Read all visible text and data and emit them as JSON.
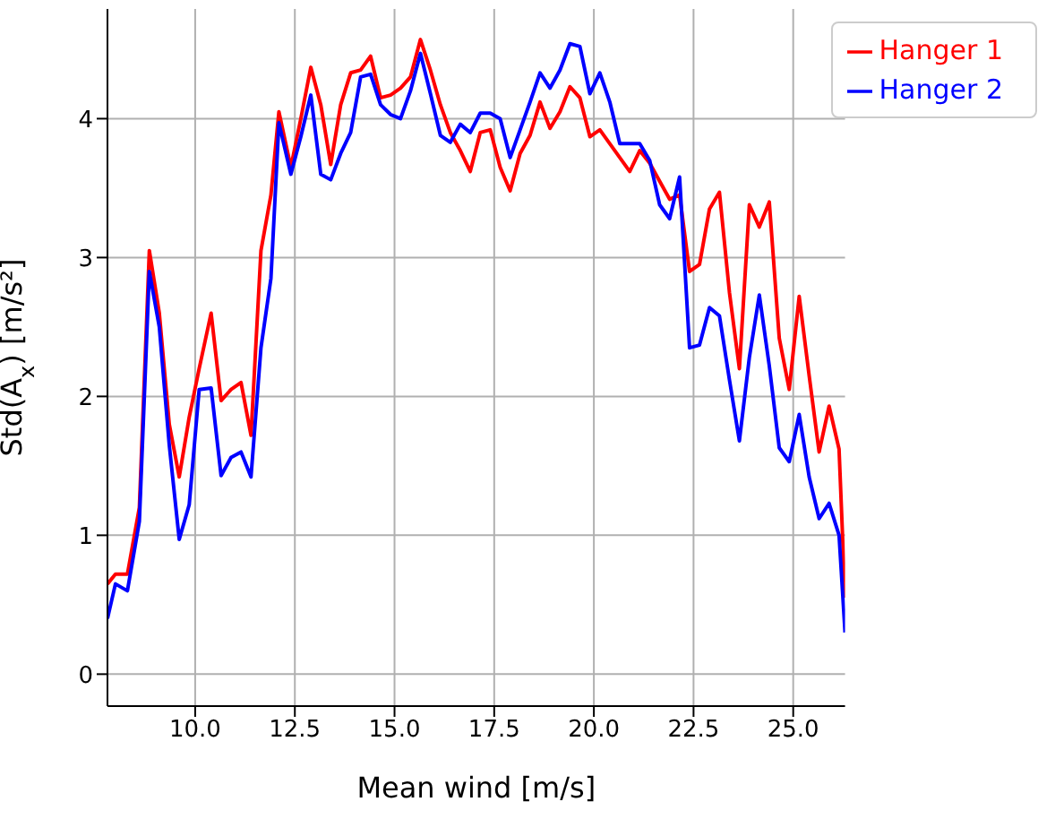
{
  "chart_data": {
    "type": "line",
    "xlabel": "Mean wind [m/s]",
    "ylabel": "Std(A$_{x}$) [m/s²]",
    "x": [
      7.8,
      8.0,
      8.3,
      8.6,
      8.85,
      9.1,
      9.35,
      9.6,
      9.85,
      10.1,
      10.4,
      10.65,
      10.9,
      11.15,
      11.4,
      11.65,
      11.9,
      12.1,
      12.4,
      12.65,
      12.9,
      13.15,
      13.4,
      13.65,
      13.9,
      14.15,
      14.4,
      14.65,
      14.9,
      15.15,
      15.4,
      15.65,
      15.9,
      16.15,
      16.4,
      16.65,
      16.9,
      17.15,
      17.4,
      17.65,
      17.9,
      18.15,
      18.4,
      18.65,
      18.9,
      19.15,
      19.4,
      19.65,
      19.9,
      20.15,
      20.4,
      20.65,
      20.9,
      21.15,
      21.4,
      21.65,
      21.9,
      22.15,
      22.4,
      22.65,
      22.9,
      23.15,
      23.4,
      23.65,
      23.9,
      24.15,
      24.4,
      24.65,
      24.9,
      25.15,
      25.4,
      25.65,
      25.9,
      26.15,
      26.3
    ],
    "series": [
      {
        "name": "Hanger 1",
        "color": "#ff0000",
        "values": [
          0.65,
          0.72,
          0.72,
          1.2,
          3.05,
          2.6,
          1.8,
          1.42,
          1.85,
          2.2,
          2.6,
          1.97,
          2.05,
          2.1,
          1.72,
          3.05,
          3.45,
          4.05,
          3.65,
          4.0,
          4.37,
          4.1,
          3.67,
          4.1,
          4.33,
          4.35,
          4.45,
          4.15,
          4.17,
          4.22,
          4.3,
          4.57,
          4.35,
          4.1,
          3.9,
          3.77,
          3.62,
          3.9,
          3.92,
          3.65,
          3.48,
          3.75,
          3.88,
          4.12,
          3.93,
          4.05,
          4.23,
          4.15,
          3.87,
          3.92,
          3.82,
          3.72,
          3.62,
          3.77,
          3.68,
          3.55,
          3.42,
          3.45,
          2.9,
          2.95,
          3.35,
          3.47,
          2.75,
          2.2,
          3.38,
          3.22,
          3.4,
          2.42,
          2.05,
          2.72,
          2.15,
          1.6,
          1.93,
          1.62,
          0.55
        ]
      },
      {
        "name": "Hanger 2",
        "color": "#0000ff",
        "values": [
          0.4,
          0.65,
          0.6,
          1.1,
          2.9,
          2.5,
          1.65,
          0.97,
          1.22,
          2.05,
          2.06,
          1.43,
          1.56,
          1.6,
          1.42,
          2.35,
          2.85,
          3.97,
          3.6,
          3.87,
          4.17,
          3.6,
          3.56,
          3.75,
          3.9,
          4.3,
          4.32,
          4.1,
          4.03,
          4.0,
          4.2,
          4.47,
          4.18,
          3.88,
          3.83,
          3.96,
          3.9,
          4.04,
          4.04,
          4.0,
          3.72,
          3.92,
          4.12,
          4.33,
          4.22,
          4.35,
          4.54,
          4.52,
          4.18,
          4.33,
          4.12,
          3.82,
          3.82,
          3.82,
          3.7,
          3.38,
          3.28,
          3.58,
          2.35,
          2.37,
          2.64,
          2.58,
          2.12,
          1.68,
          2.28,
          2.73,
          2.22,
          1.63,
          1.53,
          1.87,
          1.42,
          1.12,
          1.23,
          1.0,
          0.3
        ]
      }
    ],
    "xlim": [
      7.8,
      26.3
    ],
    "xticks": [
      {
        "value": 10,
        "label": "10.0"
      },
      {
        "value": 12.5,
        "label": "12.5"
      },
      {
        "value": 15,
        "label": "15.0"
      },
      {
        "value": 17.5,
        "label": "17.5"
      },
      {
        "value": 20,
        "label": "20.0"
      },
      {
        "value": 22.5,
        "label": "22.5"
      },
      {
        "value": 25,
        "label": "25.0"
      }
    ],
    "ylim": [
      -0.23,
      4.79
    ],
    "yticks": [
      0,
      1,
      2,
      3,
      4
    ],
    "grid": true,
    "legend": "top right"
  }
}
